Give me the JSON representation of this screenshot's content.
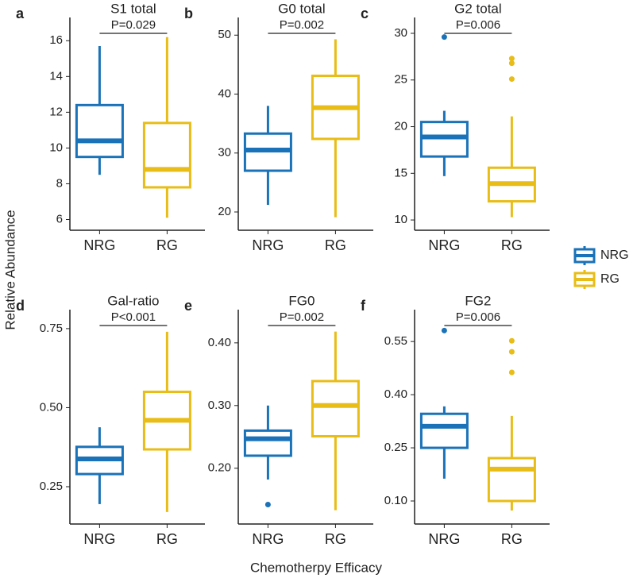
{
  "ylabel": "Relative Abundance",
  "xlabel": "Chemotherpy Efficacy",
  "legend": {
    "position": "right",
    "entries": [
      {
        "name": "NRG",
        "color": "#1a72b8"
      },
      {
        "name": "RG",
        "color": "#e8bd17"
      }
    ]
  },
  "chart_data": [
    {
      "type": "box",
      "label": "a",
      "title": "S1 total",
      "annotation": "P=0.029",
      "categories": [
        "NRG",
        "RG"
      ],
      "colors": [
        "#1a72b8",
        "#e8bd17"
      ],
      "boxes": [
        {
          "low": 8.5,
          "q1": 9.5,
          "median": 10.4,
          "q3": 12.4,
          "high": 15.7,
          "outliers": []
        },
        {
          "low": 6.1,
          "q1": 7.8,
          "median": 8.8,
          "q3": 11.4,
          "high": 16.2,
          "outliers": []
        }
      ],
      "ylim": [
        5.4,
        17.3
      ],
      "yticks": [
        6,
        8,
        10,
        12,
        14,
        16
      ]
    },
    {
      "type": "box",
      "label": "b",
      "title": "G0 total",
      "annotation": "P=0.002",
      "categories": [
        "NRG",
        "RG"
      ],
      "colors": [
        "#1a72b8",
        "#e8bd17"
      ],
      "boxes": [
        {
          "low": 21.2,
          "q1": 27.0,
          "median": 30.5,
          "q3": 33.3,
          "high": 38.0,
          "outliers": []
        },
        {
          "low": 19.1,
          "q1": 32.4,
          "median": 37.7,
          "q3": 43.1,
          "high": 49.3,
          "outliers": []
        }
      ],
      "ylim": [
        16.9,
        53
      ],
      "yticks": [
        20,
        30,
        40,
        50
      ]
    },
    {
      "type": "box",
      "label": "c",
      "title": "G2 total",
      "annotation": "P=0.006",
      "categories": [
        "NRG",
        "RG"
      ],
      "colors": [
        "#1a72b8",
        "#e8bd17"
      ],
      "boxes": [
        {
          "low": 14.7,
          "q1": 16.8,
          "median": 18.9,
          "q3": 20.5,
          "high": 21.7,
          "outliers": [
            29.6
          ]
        },
        {
          "low": 10.3,
          "q1": 12.0,
          "median": 13.9,
          "q3": 15.6,
          "high": 21.1,
          "outliers": [
            27.3,
            26.8,
            25.1
          ]
        }
      ],
      "ylim": [
        8.9,
        31.7
      ],
      "yticks": [
        10,
        15,
        20,
        25,
        30
      ]
    },
    {
      "type": "box",
      "label": "d",
      "title": "Gal-ratio",
      "annotation": "P<0.001",
      "categories": [
        "NRG",
        "RG"
      ],
      "colors": [
        "#1a72b8",
        "#e8bd17"
      ],
      "boxes": [
        {
          "low": 0.195,
          "q1": 0.29,
          "median": 0.338,
          "q3": 0.376,
          "high": 0.438,
          "outliers": []
        },
        {
          "low": 0.17,
          "q1": 0.368,
          "median": 0.46,
          "q3": 0.55,
          "high": 0.74,
          "outliers": []
        }
      ],
      "ylim": [
        0.132,
        0.81
      ],
      "yticks": [
        0.25,
        {
          "value": 0.5,
          "label": "0.50"
        },
        0.75
      ]
    },
    {
      "type": "box",
      "label": "e",
      "title": "FG0",
      "annotation": "P=0.002",
      "categories": [
        "NRG",
        "RG"
      ],
      "colors": [
        "#1a72b8",
        "#e8bd17"
      ],
      "boxes": [
        {
          "low": 0.182,
          "q1": 0.22,
          "median": 0.247,
          "q3": 0.26,
          "high": 0.3,
          "outliers": [
            0.142
          ]
        },
        {
          "low": 0.133,
          "q1": 0.251,
          "median": 0.3,
          "q3": 0.339,
          "high": 0.418,
          "outliers": []
        }
      ],
      "ylim": [
        0.111,
        0.453
      ],
      "yticks": [
        {
          "value": 0.2,
          "label": "0.20"
        },
        {
          "value": 0.3,
          "label": "0.30"
        },
        {
          "value": 0.4,
          "label": "0.40"
        }
      ]
    },
    {
      "type": "box",
      "label": "f",
      "title": "FG2",
      "annotation": "P=0.006",
      "categories": [
        "NRG",
        "RG"
      ],
      "colors": [
        "#1a72b8",
        "#e8bd17"
      ],
      "boxes": [
        {
          "low": 0.163,
          "q1": 0.25,
          "median": 0.311,
          "q3": 0.346,
          "high": 0.367,
          "outliers": [
            0.581
          ]
        },
        {
          "low": 0.073,
          "q1": 0.1,
          "median": 0.19,
          "q3": 0.221,
          "high": 0.34,
          "outliers": [
            0.552,
            0.521,
            0.463
          ]
        }
      ],
      "ylim": [
        0.035,
        0.64
      ],
      "yticks": [
        {
          "value": 0.1,
          "label": "0.10"
        },
        0.25,
        {
          "value": 0.4,
          "label": "0.40"
        },
        0.55
      ]
    }
  ]
}
